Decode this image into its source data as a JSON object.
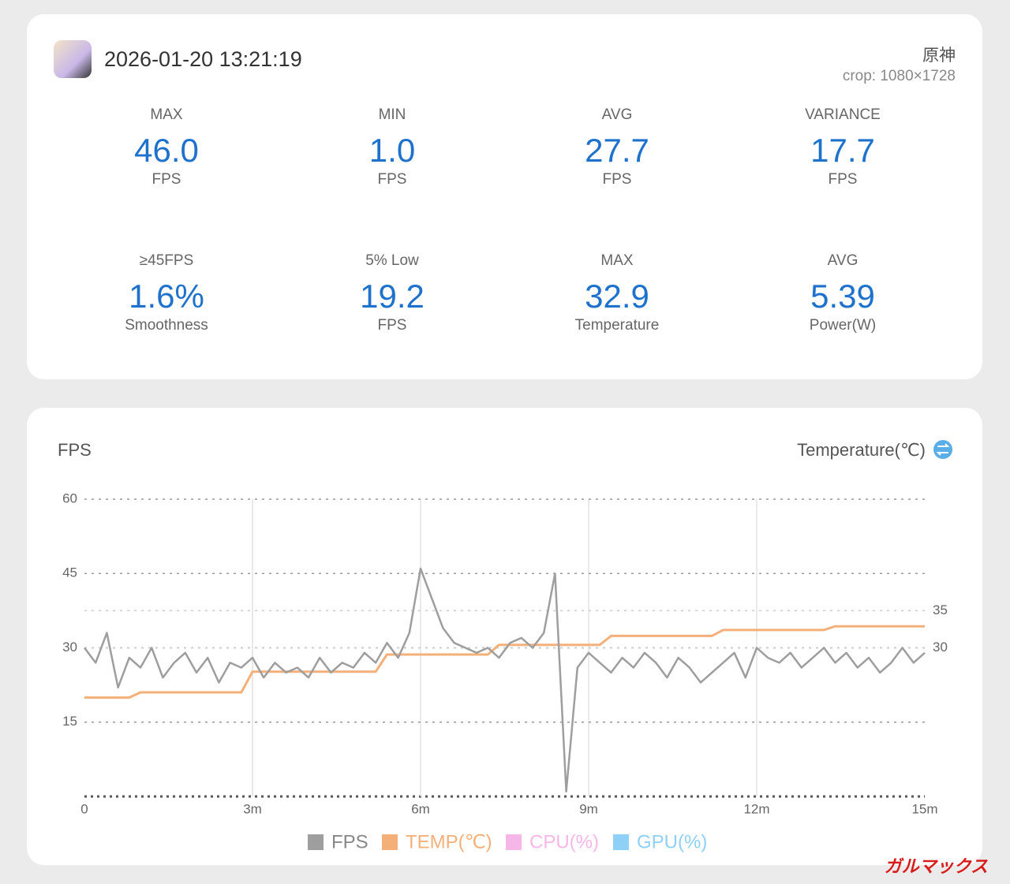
{
  "header": {
    "datetime": "2026-01-20 13:21:19",
    "app_name": "原神",
    "crop": "crop: 1080×1728"
  },
  "stats": [
    {
      "label": "MAX",
      "value": "46.0",
      "unit": "FPS"
    },
    {
      "label": "MIN",
      "value": "1.0",
      "unit": "FPS"
    },
    {
      "label": "AVG",
      "value": "27.7",
      "unit": "FPS"
    },
    {
      "label": "VARIANCE",
      "value": "17.7",
      "unit": "FPS"
    },
    {
      "label": "≥45FPS",
      "value": "1.6%",
      "unit": "Smoothness"
    },
    {
      "label": "5% Low",
      "value": "19.2",
      "unit": "FPS"
    },
    {
      "label": "MAX",
      "value": "32.9",
      "unit": "Temperature"
    },
    {
      "label": "AVG",
      "value": "5.39",
      "unit": "Power(W)"
    }
  ],
  "chart_data": {
    "type": "line",
    "title": "FPS",
    "y2_label": "Temperature(℃)",
    "x": [
      0,
      0.2,
      0.4,
      0.6,
      0.8,
      1,
      1.2,
      1.4,
      1.6,
      1.8,
      2,
      2.2,
      2.4,
      2.6,
      2.8,
      3,
      3.2,
      3.4,
      3.6,
      3.8,
      4,
      4.2,
      4.4,
      4.6,
      4.8,
      5,
      5.2,
      5.4,
      5.6,
      5.8,
      6,
      6.2,
      6.4,
      6.6,
      6.8,
      7,
      7.2,
      7.4,
      7.6,
      7.8,
      8,
      8.2,
      8.4,
      8.6,
      8.8,
      9,
      9.2,
      9.4,
      9.6,
      9.8,
      10,
      10.2,
      10.4,
      10.6,
      10.8,
      11,
      11.2,
      11.4,
      11.6,
      11.8,
      12,
      12.2,
      12.4,
      12.6,
      12.8,
      13,
      13.2,
      13.4,
      13.6,
      13.8,
      14,
      14.2,
      14.4,
      14.6,
      14.8,
      15
    ],
    "series": [
      {
        "name": "FPS",
        "color": "#9e9e9e",
        "values": [
          30,
          27,
          33,
          22,
          28,
          26,
          30,
          24,
          27,
          29,
          25,
          28,
          23,
          27,
          26,
          28,
          24,
          27,
          25,
          26,
          24,
          28,
          25,
          27,
          26,
          29,
          27,
          31,
          28,
          33,
          46,
          40,
          34,
          31,
          30,
          29,
          30,
          28,
          31,
          32,
          30,
          33,
          45,
          1,
          26,
          29,
          27,
          25,
          28,
          26,
          29,
          27,
          24,
          28,
          26,
          23,
          25,
          27,
          29,
          24,
          30,
          28,
          27,
          29,
          26,
          28,
          30,
          27,
          29,
          26,
          28,
          25,
          27,
          30,
          27,
          29
        ]
      },
      {
        "name": "TEMP(℃)",
        "color": "#f5b07a",
        "axis": "y2",
        "values": [
          23.3,
          23.3,
          23.3,
          23.3,
          23.3,
          24,
          24,
          24,
          24,
          24,
          24,
          24,
          24,
          24,
          24,
          26.8,
          26.8,
          26.8,
          26.8,
          26.8,
          26.8,
          26.8,
          26.8,
          26.8,
          26.8,
          26.8,
          26.8,
          29.1,
          29.1,
          29.1,
          29.1,
          29.1,
          29.1,
          29.1,
          29.1,
          29.1,
          29.1,
          30.4,
          30.4,
          30.4,
          30.4,
          30.4,
          30.4,
          30.4,
          30.4,
          30.4,
          30.4,
          31.6,
          31.6,
          31.6,
          31.6,
          31.6,
          31.6,
          31.6,
          31.6,
          31.6,
          31.6,
          32.4,
          32.4,
          32.4,
          32.4,
          32.4,
          32.4,
          32.4,
          32.4,
          32.4,
          32.4,
          32.9,
          32.9,
          32.9,
          32.9,
          32.9,
          32.9,
          32.9,
          32.9,
          32.9
        ]
      }
    ],
    "other_legend": [
      {
        "name": "CPU(%)",
        "color": "#f7b6e8"
      },
      {
        "name": "GPU(%)",
        "color": "#8fd0f6"
      }
    ],
    "xlim": [
      0,
      15
    ],
    "xticks": [
      0,
      {
        "value": 3,
        "label": "3m"
      },
      {
        "value": 6,
        "label": "6m"
      },
      {
        "value": 9,
        "label": "9m"
      },
      {
        "value": 12,
        "label": "12m"
      },
      {
        "value": 15,
        "label": "15m"
      }
    ],
    "ylim": [
      0,
      60
    ],
    "yticks": [
      15,
      30,
      45,
      60
    ],
    "y2lim": [
      10,
      50
    ],
    "y2ticks": [
      30,
      35
    ],
    "grid": true
  },
  "watermark": "ガルマックス"
}
